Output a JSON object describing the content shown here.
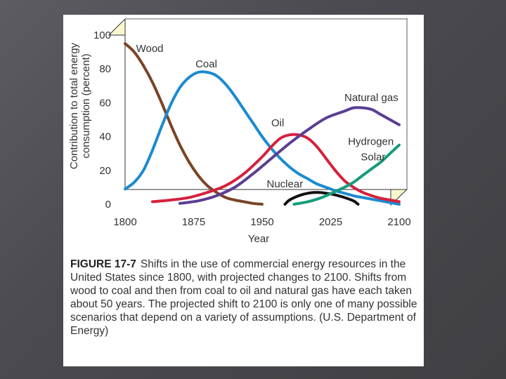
{
  "chart_data": {
    "type": "line",
    "xlabel": "Year",
    "ylabel": [
      "Contribution to total energy",
      "consumption (percent)"
    ],
    "xlim": [
      1800,
      2100
    ],
    "ylim": [
      0,
      100
    ],
    "x_ticks": [
      1800,
      1875,
      1950,
      2025,
      2100
    ],
    "y_ticks": [
      0,
      20,
      40,
      60,
      80,
      100
    ],
    "grid": false,
    "series": [
      {
        "name": "Wood",
        "color": "#7a4426",
        "x": [
          1800,
          1810,
          1820,
          1830,
          1840,
          1850,
          1860,
          1870,
          1880,
          1890,
          1900,
          1910,
          1920,
          1930,
          1940,
          1950
        ],
        "y": [
          95,
          90,
          82,
          72,
          60,
          47,
          35,
          25,
          17,
          11,
          7,
          4,
          2.5,
          1.5,
          0.5,
          0
        ]
      },
      {
        "name": "Coal",
        "color": "#1b8ad0",
        "x": [
          1800,
          1810,
          1820,
          1830,
          1840,
          1850,
          1860,
          1870,
          1880,
          1890,
          1900,
          1910,
          1920,
          1930,
          1940,
          1950,
          1960,
          1970,
          1980,
          1990,
          2000,
          2010,
          2020,
          2030,
          2040,
          2050,
          2060,
          2070,
          2080,
          2090,
          2100
        ],
        "y": [
          9,
          13,
          20,
          32,
          46,
          59,
          69,
          75,
          78,
          78,
          76,
          71,
          64,
          56,
          48,
          40,
          33,
          27,
          22,
          18,
          15,
          12,
          10,
          8,
          6.5,
          5,
          4,
          3,
          2,
          1,
          0
        ]
      },
      {
        "name": "Oil",
        "color": "#d6203c",
        "x": [
          1830,
          1850,
          1870,
          1890,
          1910,
          1930,
          1950,
          1960,
          1970,
          1980,
          1990,
          2000,
          2010,
          2020,
          2030,
          2040,
          2050,
          2060,
          2070,
          2080,
          2090,
          2100
        ],
        "y": [
          1.5,
          2.5,
          4,
          7,
          11,
          18,
          28,
          34,
          39,
          41,
          41,
          39,
          34,
          27,
          20,
          14,
          10,
          7,
          5,
          3.5,
          2.5,
          1.5
        ]
      },
      {
        "name": "Natural gas",
        "color": "#5a3e92",
        "x": [
          1860,
          1880,
          1900,
          1920,
          1940,
          1960,
          1980,
          2000,
          2020,
          2040,
          2050,
          2060,
          2070,
          2080,
          2090,
          2100
        ],
        "y": [
          0.5,
          2,
          5,
          10,
          18,
          27,
          36,
          44,
          51,
          55,
          57,
          57,
          56,
          53,
          50,
          47
        ]
      },
      {
        "name": "Nuclear",
        "color": "#111111",
        "x": [
          1975,
          1980,
          1990,
          2000,
          2010,
          2020,
          2030,
          2040,
          2050,
          2055
        ],
        "y": [
          0,
          2.5,
          5,
          6.5,
          7,
          6.5,
          5.5,
          4,
          2,
          0
        ]
      },
      {
        "name": "Hydrogen Solar",
        "color": "#159c7a",
        "x": [
          1985,
          2000,
          2010,
          2020,
          2030,
          2040,
          2050,
          2060,
          2070,
          2080,
          2090,
          2100
        ],
        "y": [
          0,
          1.5,
          3,
          5,
          7.5,
          10,
          13,
          17,
          21,
          25,
          30,
          35
        ]
      }
    ],
    "annotations": [
      {
        "text": "Wood",
        "x": 1812,
        "y": 90
      },
      {
        "text": "Coal",
        "x": 1877,
        "y": 81
      },
      {
        "text": "Natural gas",
        "x": 2040,
        "y": 61
      },
      {
        "text": "Oil",
        "x": 1960,
        "y": 46
      },
      {
        "text": "Hydrogen",
        "x": 2044,
        "y": 35
      },
      {
        "text": "Solar",
        "x": 2058,
        "y": 26
      },
      {
        "text": "Nuclear",
        "x": 1955,
        "y": 10
      }
    ]
  },
  "caption": {
    "label": "FIGURE 17-7",
    "text": "Shifts in the use of commercial energy resources in the United States since 1800, with projected changes to 2100. Shifts from wood to coal and then from coal to oil and natural gas have each taken about 50 years. The projected shift to 2100 is only one of many possible scenarios that depend on a variety of assumptions. (U.S. Department of Energy)"
  },
  "colors": {
    "panel_background": "#ffffff",
    "slide_background": "#4a4a50",
    "frame_fill": "#fbf7cc"
  }
}
